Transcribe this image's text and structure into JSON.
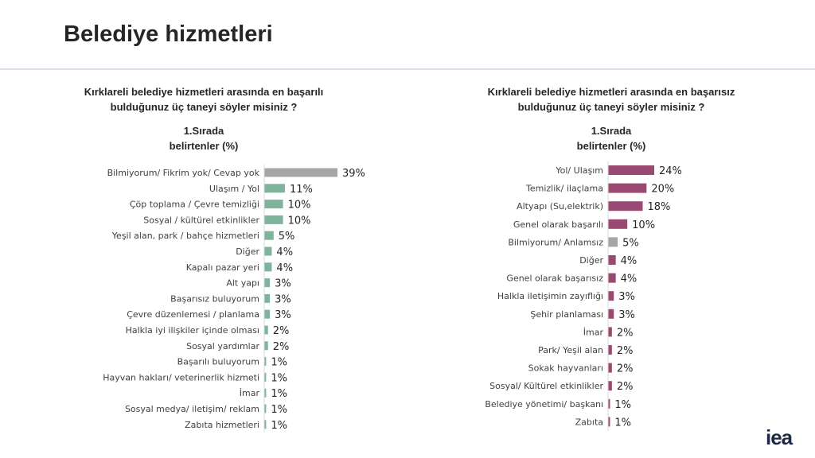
{
  "page": {
    "title": "Belediye hizmetleri",
    "logo": "iea"
  },
  "chart_data": [
    {
      "type": "bar",
      "orientation": "horizontal",
      "title": "Kırklareli belediye hizmetleri arasında en başarılı\nbulduğunuz üç taneyi söyler misiniz ?",
      "subtitle": "1.Sırada\nbelirtenler (%)",
      "categories": [
        "Bilmiyorum/ Fikrim yok/ Cevap yok",
        "Ulaşım / Yol",
        "Çöp toplama / Çevre temizliği",
        "Sosyal / kültürel etkinlikler",
        "Yeşil alan, park / bahçe hizmetleri",
        "Diğer",
        "Kapalı pazar yeri",
        "Alt yapı",
        "Başarısız buluyorum",
        "Çevre düzenlemesi / planlama",
        "Halkla iyi ilişkiler içinde olması",
        "Sosyal yardımlar",
        "Başarılı buluyorum",
        "Hayvan hakları/ veterinerlik hizmeti",
        "İmar",
        "Sosyal medya/ iletişim/ reklam",
        "Zabıta hizmetleri"
      ],
      "values": [
        39,
        11,
        10,
        10,
        5,
        4,
        4,
        3,
        3,
        3,
        2,
        2,
        1,
        1,
        1,
        1,
        1
      ],
      "value_suffix": "%",
      "highlight_index": 0,
      "colors": {
        "bar": "#7db49a",
        "highlight": "#a6a6a6"
      },
      "xlim": [
        0,
        39
      ]
    },
    {
      "type": "bar",
      "orientation": "horizontal",
      "title": "Kırklareli belediye hizmetleri arasında en başarısız\nbulduğunuz üç taneyi söyler misiniz ?",
      "subtitle": "1.Sırada\nbelirtenler (%)",
      "categories": [
        "Yol/ Ulaşım",
        "Temizlik/ ilaçlama",
        "Altyapı (Su,elektrik)",
        "Genel olarak başarılı",
        "Bilmiyorum/ Anlamsız",
        "Diğer",
        "Genel olarak başarısız",
        "Halkla iletişimin zayıflığı",
        "Şehir planlaması",
        "İmar",
        "Park/ Yeşil alan",
        "Sokak hayvanları",
        "Sosyal/ Kültürel etkinlikler",
        "Belediye yönetimi/ başkanı",
        "Zabıta"
      ],
      "values": [
        24,
        20,
        18,
        10,
        5,
        4,
        4,
        3,
        3,
        2,
        2,
        2,
        2,
        1,
        1
      ],
      "value_suffix": "%",
      "highlight_index": 4,
      "colors": {
        "bar": "#9a4a72",
        "highlight": "#a6a6a6"
      },
      "xlim": [
        0,
        24
      ]
    }
  ]
}
